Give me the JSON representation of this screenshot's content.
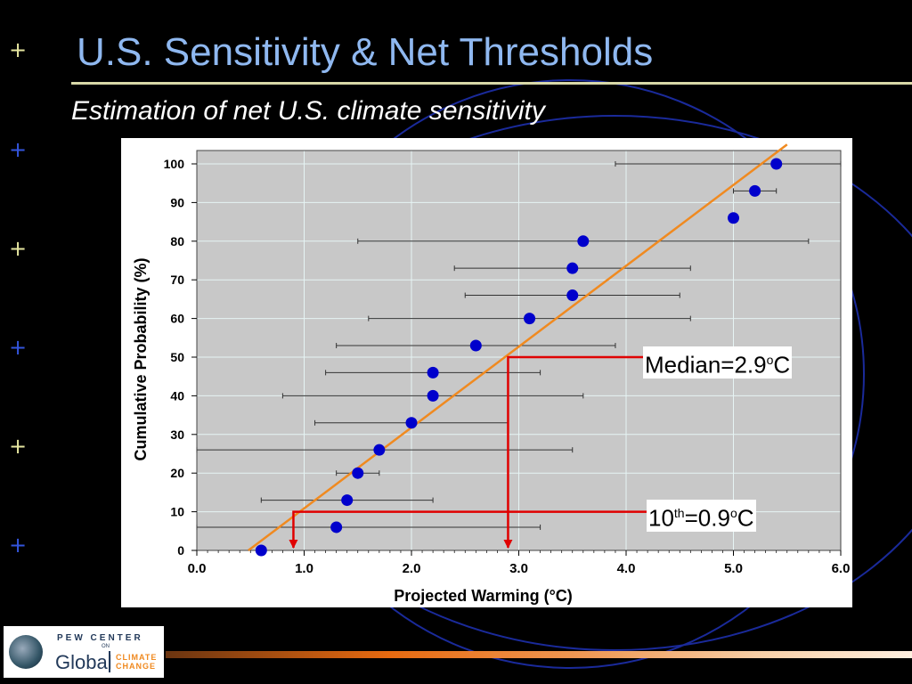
{
  "slide": {
    "title": "U.S. Sensitivity & Net Thresholds",
    "subtitle": "Estimation of net U.S. climate sensitivity",
    "bullet_symbol": "+",
    "bullet_colors": [
      "#e6e6a0",
      "#3355dd",
      "#e6e6a0",
      "#3355dd",
      "#e6e6a0",
      "#3355dd"
    ]
  },
  "logo": {
    "top_text": "PEW CENTER",
    "on_text": "ON",
    "global_text": "Global",
    "climate_text": "CLIMATE",
    "change_text": "CHANGE"
  },
  "annotations": {
    "median_label": "Median=2.9",
    "median_sup": "o",
    "median_unit": "C",
    "tenth_prefix": "10",
    "tenth_sup": "th",
    "tenth_value": "=0.9",
    "tenth_deg": "o",
    "tenth_unit": "C"
  },
  "colors": {
    "plot_bg": "#c8c8c8",
    "grid": "#e6f4f4",
    "point": "#0000cc",
    "fit_line": "#f08a20",
    "marker_line": "#e00000"
  },
  "chart_data": {
    "type": "scatter",
    "title": "",
    "xlabel": "Projected Warming (°C)",
    "ylabel": "Cumulative Probability (%)",
    "xlim": [
      0.0,
      6.0
    ],
    "ylim": [
      0,
      100
    ],
    "xticks": [
      "0.0",
      "1.0",
      "2.0",
      "3.0",
      "4.0",
      "5.0",
      "6.0"
    ],
    "yticks": [
      "0",
      "10",
      "20",
      "30",
      "40",
      "50",
      "60",
      "70",
      "80",
      "90",
      "100"
    ],
    "grid": true,
    "points": [
      {
        "x": 0.6,
        "y": 0,
        "xerr": null
      },
      {
        "x": 1.3,
        "y": 6,
        "xerr": [
          0.0,
          3.2
        ]
      },
      {
        "x": 1.4,
        "y": 13,
        "xerr": [
          0.6,
          2.2
        ]
      },
      {
        "x": 1.5,
        "y": 20,
        "xerr": [
          1.3,
          1.7
        ]
      },
      {
        "x": 1.7,
        "y": 26,
        "xerr": [
          0.0,
          3.5
        ]
      },
      {
        "x": 2.0,
        "y": 33,
        "xerr": [
          1.1,
          2.9
        ]
      },
      {
        "x": 2.2,
        "y": 40,
        "xerr": [
          0.8,
          3.6
        ]
      },
      {
        "x": 2.2,
        "y": 46,
        "xerr": [
          1.2,
          3.2
        ]
      },
      {
        "x": 2.6,
        "y": 53,
        "xerr": [
          1.3,
          3.9
        ]
      },
      {
        "x": 3.1,
        "y": 60,
        "xerr": [
          1.6,
          4.6
        ]
      },
      {
        "x": 3.5,
        "y": 66,
        "xerr": [
          2.5,
          4.5
        ]
      },
      {
        "x": 3.5,
        "y": 73,
        "xerr": [
          2.4,
          4.6
        ]
      },
      {
        "x": 3.6,
        "y": 80,
        "xerr": [
          1.5,
          5.7
        ]
      },
      {
        "x": 5.0,
        "y": 86,
        "xerr": null
      },
      {
        "x": 5.2,
        "y": 93,
        "xerr": [
          5.0,
          5.4
        ]
      },
      {
        "x": 5.4,
        "y": 100,
        "xerr": [
          3.9,
          6.0
        ]
      }
    ],
    "fit_line": {
      "x": [
        0.48,
        5.5
      ],
      "y": [
        0,
        105
      ]
    },
    "median": {
      "x": 2.9,
      "y": 50
    },
    "tenth_percentile": {
      "x": 0.9,
      "y": 10
    }
  }
}
